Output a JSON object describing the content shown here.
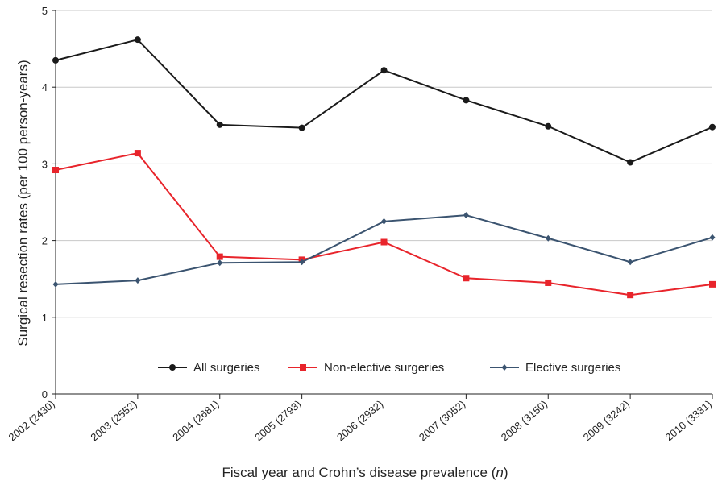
{
  "chart_data": {
    "type": "line",
    "categories": [
      "2002 (2430)",
      "2003 (2552)",
      "2004 (2681)",
      "2005 (2793)",
      "2006 (2932)",
      "2007 (3052)",
      "2008 (3150)",
      "2009 (3242)",
      "2010 (3331)"
    ],
    "series": [
      {
        "name": "All surgeries",
        "values": [
          4.35,
          4.62,
          3.51,
          3.47,
          4.22,
          3.83,
          3.49,
          3.02,
          3.48
        ],
        "color": "#1a1a1a",
        "marker": "circle"
      },
      {
        "name": "Non-elective surgeries",
        "values": [
          2.92,
          3.14,
          1.79,
          1.75,
          1.98,
          1.51,
          1.45,
          1.29,
          1.43
        ],
        "color": "#e8242b",
        "marker": "square"
      },
      {
        "name": "Elective surgeries",
        "values": [
          1.43,
          1.48,
          1.71,
          1.72,
          2.25,
          2.33,
          2.03,
          1.72,
          2.04
        ],
        "color": "#3b5470",
        "marker": "diamond"
      }
    ],
    "ylabel": "Surgical resection rates (per 100 person-years)",
    "xlabel_main": "Fiscal year and Crohn’s disease prevalence (",
    "xlabel_italic": "n",
    "xlabel_end": ")",
    "ylim": [
      0,
      5
    ],
    "yticks": [
      "0",
      "1",
      "2",
      "3",
      "4",
      "5"
    ],
    "grid": "horizontal",
    "legend_position": "bottom-center"
  }
}
